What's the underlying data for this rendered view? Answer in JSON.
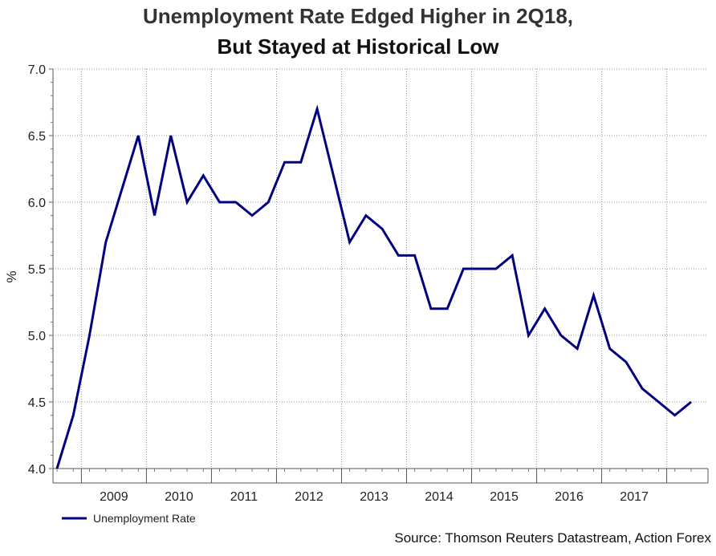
{
  "chart_data": {
    "type": "line",
    "title_line1": "Unemployment Rate Edged Higher in 2Q18,",
    "title_line2": "But Stayed at Historical Low",
    "ylabel": "%",
    "ylim": [
      4.0,
      7.0
    ],
    "yticks": [
      "4.0",
      "4.5",
      "5.0",
      "5.5",
      "6.0",
      "6.5",
      "7.0"
    ],
    "ytick_values": [
      4.0,
      4.5,
      5.0,
      5.5,
      6.0,
      6.5,
      7.0
    ],
    "year_labels": [
      "2009",
      "2010",
      "2011",
      "2012",
      "2013",
      "2014",
      "2015",
      "2016",
      "2017"
    ],
    "series": [
      {
        "name": "Unemployment Rate",
        "color": "#000080",
        "values": [
          4.0,
          4.4,
          5.0,
          5.7,
          6.1,
          6.5,
          5.9,
          6.5,
          6.0,
          6.2,
          6.0,
          6.0,
          5.9,
          6.0,
          6.3,
          6.3,
          6.7,
          6.2,
          5.7,
          5.9,
          5.8,
          5.6,
          5.6,
          5.2,
          5.2,
          5.5,
          5.5,
          5.5,
          5.6,
          5.0,
          5.2,
          5.0,
          4.9,
          5.3,
          4.9,
          4.8,
          4.6,
          4.5,
          4.4,
          4.5
        ]
      }
    ],
    "legend": "Unemployment Rate",
    "source": "Source: Thomson Reuters Datastream, Action Forex"
  }
}
